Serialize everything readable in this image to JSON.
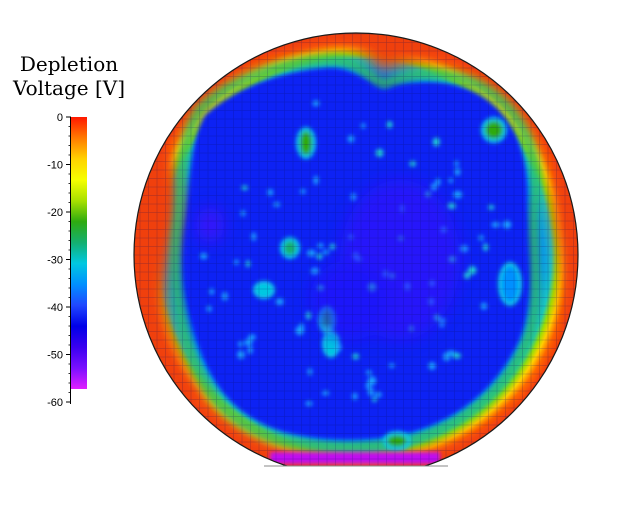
{
  "chart_data": {
    "type": "heatmap",
    "title": "",
    "colorbar": {
      "label_lines": [
        "Depletion",
        "Voltage [V]"
      ],
      "range": [
        -60,
        0
      ],
      "ticks": [
        0,
        -10,
        -20,
        -30,
        -40,
        -50,
        -60
      ],
      "colors": [
        "#ff1800",
        "#ff7a00",
        "#ffd200",
        "#f6ff00",
        "#a8e000",
        "#2eaa10",
        "#14b070",
        "#00c8e0",
        "#0090ff",
        "#2048ff",
        "#0000e8",
        "#3a00f0",
        "#7a10ff",
        "#e020ff"
      ]
    },
    "map": {
      "shape": "circular wafer",
      "edge_value": -1,
      "bulk_value": -49,
      "grid": true,
      "hotspots_approx": [
        {
          "value": -25
        },
        {
          "value": -25
        },
        {
          "value": -27
        },
        {
          "value": -30
        },
        {
          "value": -27
        },
        {
          "value": -32
        },
        {
          "value": -24
        },
        {
          "value": -35
        }
      ]
    }
  }
}
